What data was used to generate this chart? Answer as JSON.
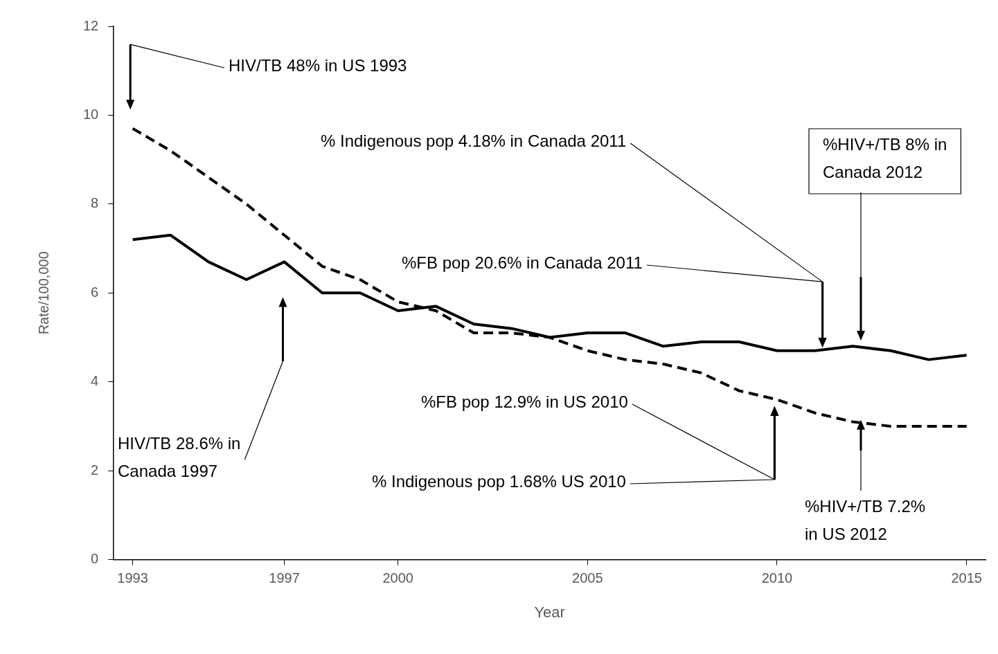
{
  "chart_data": {
    "type": "line",
    "xlabel": "Year",
    "ylabel": "Rate/100,000",
    "x": [
      1993,
      1994,
      1995,
      1996,
      1997,
      1998,
      1999,
      2000,
      2001,
      2002,
      2003,
      2004,
      2005,
      2006,
      2007,
      2008,
      2009,
      2010,
      2011,
      2012,
      2013,
      2014,
      2015
    ],
    "xlim": [
      1992.5,
      2015.5
    ],
    "xticks": [
      1993,
      1997,
      2000,
      2005,
      2010,
      2015
    ],
    "ylim": [
      0,
      12
    ],
    "yticks": [
      0,
      2,
      4,
      6,
      8,
      10,
      12
    ],
    "grid": false,
    "legend": false,
    "marker": "none",
    "series": [
      {
        "color": "#000000",
        "line_style": "solid",
        "values": [
          7.2,
          7.3,
          6.7,
          6.3,
          6.7,
          6.0,
          6.0,
          5.6,
          5.7,
          5.3,
          5.2,
          5.0,
          5.1,
          5.1,
          4.8,
          4.9,
          4.9,
          4.7,
          4.7,
          4.8,
          4.7,
          4.5,
          4.6
        ]
      },
      {
        "color": "#000000",
        "line_style": "dashed",
        "values": [
          9.7,
          9.2,
          8.6,
          8.0,
          7.3,
          6.6,
          6.3,
          5.8,
          5.6,
          5.1,
          5.1,
          5.0,
          4.7,
          4.5,
          4.4,
          4.2,
          3.8,
          3.6,
          3.3,
          3.1,
          3.0,
          3.0,
          3.0
        ]
      }
    ],
    "annotations": [
      "HIV/TB 48% in US 1993",
      "HIV/TB 28.6% in Canada 1997",
      "% Indigenous pop 4.18% in Canada 2011",
      "%FB pop 20.6% in Canada 2011",
      "%HIV+/TB 8% in Canada 2012",
      "%FB pop 12.9% in US 2010",
      "% Indigenous pop 1.68% US 2010",
      "%HIV+/TB 7.2% in US 2012"
    ]
  }
}
